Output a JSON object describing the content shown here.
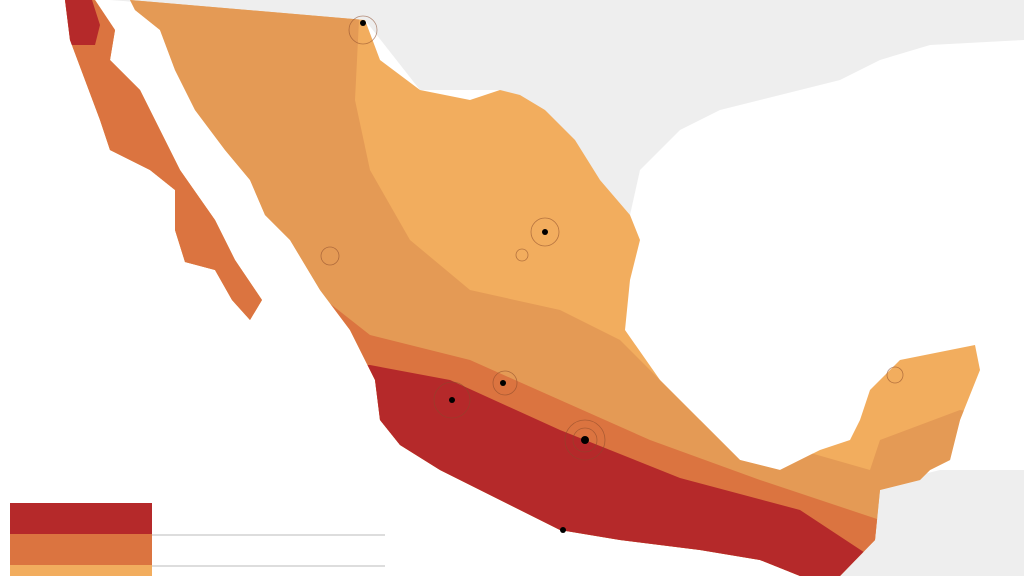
{
  "legend": {
    "colors": [
      "#b5292a",
      "#db7440",
      "#f2ad5e"
    ]
  }
}
